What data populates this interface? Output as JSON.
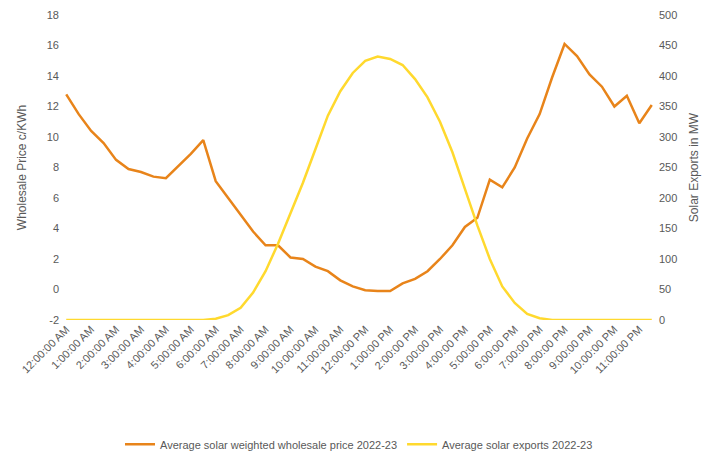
{
  "chart_data": {
    "type": "line",
    "categories": [
      "12:00:00 AM",
      null,
      "1:00:00 AM",
      null,
      "2:00:00 AM",
      null,
      "3:00:00 AM",
      null,
      "4:00:00 AM",
      null,
      "5:00:00 AM",
      null,
      "6:00:00 AM",
      null,
      "7:00:00 AM",
      null,
      "8:00:00 AM",
      null,
      "9:00:00 AM",
      null,
      "10:00:00 AM",
      null,
      "11:00:00 AM",
      null,
      "12:00:00 PM",
      null,
      "1:00:00 PM",
      null,
      "2:00:00 PM",
      null,
      "3:00:00 PM",
      null,
      "4:00:00 PM",
      null,
      "5:00:00 PM",
      null,
      "6:00:00 PM",
      null,
      "7:00:00 PM",
      null,
      "8:00:00 PM",
      null,
      "9:00:00 PM",
      null,
      "10:00:00 PM",
      null,
      "11:00:00 PM",
      null
    ],
    "series": [
      {
        "name": "Average solar weighted wholesale price 2022-23",
        "color": "#E8841A",
        "axis": "y",
        "values": [
          12.8,
          11.5,
          10.4,
          9.6,
          8.5,
          7.9,
          7.7,
          7.4,
          7.3,
          8.1,
          8.9,
          9.8,
          7.1,
          6.0,
          4.9,
          3.8,
          2.9,
          2.9,
          2.1,
          2.0,
          1.5,
          1.2,
          0.6,
          0.2,
          -0.05,
          -0.1,
          -0.1,
          0.4,
          0.7,
          1.2,
          2.0,
          2.9,
          4.1,
          4.7,
          7.2,
          6.7,
          8.0,
          9.9,
          11.5,
          13.9,
          16.1,
          15.3,
          14.1,
          13.3,
          12.0,
          12.7,
          10.9,
          12.1
        ]
      },
      {
        "name": "Average solar exports 2022-23",
        "color": "#FFD92E",
        "axis": "y2",
        "values": [
          0,
          0,
          0,
          0,
          0,
          0,
          0,
          0,
          0,
          0,
          0,
          0,
          2,
          8,
          20,
          45,
          80,
          125,
          175,
          225,
          280,
          335,
          375,
          405,
          425,
          432,
          428,
          418,
          395,
          365,
          325,
          275,
          215,
          155,
          100,
          55,
          28,
          10,
          3,
          0,
          0,
          0,
          0,
          0,
          0,
          0,
          0,
          0
        ]
      }
    ],
    "y_label": "Wholesale Price c/KWh",
    "y2_label": "Solar Exports in MW",
    "ylim": [
      -2,
      18
    ],
    "yticks": [
      -2,
      0,
      2,
      4,
      6,
      8,
      10,
      12,
      14,
      16,
      18
    ],
    "y2lim": [
      0,
      500
    ],
    "y2ticks": [
      0,
      50,
      100,
      150,
      200,
      250,
      300,
      350,
      400,
      450,
      500
    ],
    "grid": false,
    "legend": "bottom"
  }
}
